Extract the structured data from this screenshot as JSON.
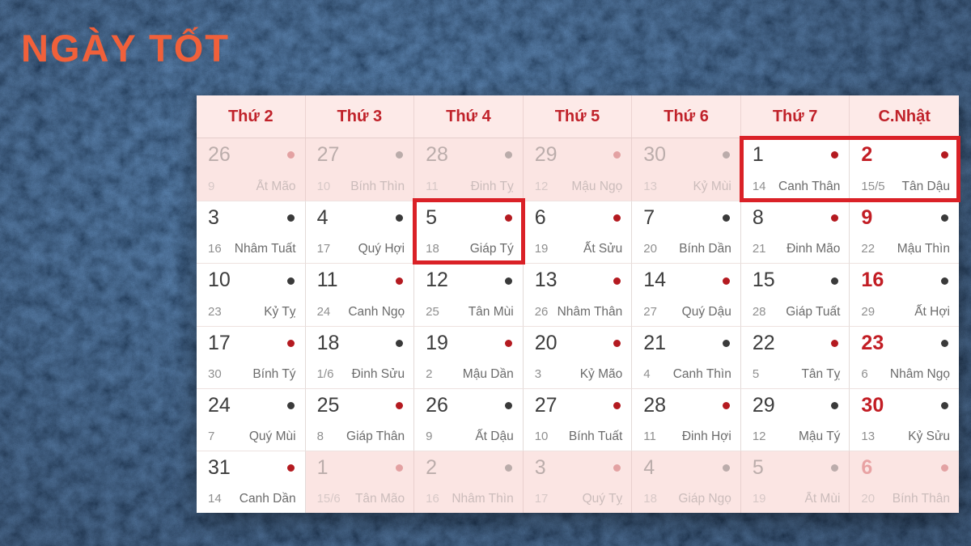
{
  "title": "NGÀY TỐT",
  "colors": {
    "background_navy": "#0d1d31",
    "title_orange": "#f1603a",
    "header_red": "#c0222a",
    "highlight_box_red": "#da2127",
    "good_day_dot_red": "#b41a20",
    "normal_day_dot_dark": "#3a3a3a",
    "adjacent_month_pink": "#fbe5e3",
    "sunday_number_red": "#c21d24"
  },
  "calendar": {
    "weekday_headers": [
      "Thứ 2",
      "Thứ 3",
      "Thứ 4",
      "Thứ 5",
      "Thứ 6",
      "Thứ 7",
      "C.Nhật"
    ],
    "weeks": [
      [
        {
          "day": "26",
          "lunar": "9",
          "chi": "Ất Mão",
          "dot": "red",
          "muted": true
        },
        {
          "day": "27",
          "lunar": "10",
          "chi": "Bính Thìn",
          "dot": "dark",
          "muted": true
        },
        {
          "day": "28",
          "lunar": "11",
          "chi": "Đinh Tỵ",
          "dot": "dark",
          "muted": true
        },
        {
          "day": "29",
          "lunar": "12",
          "chi": "Mậu Ngọ",
          "dot": "red",
          "muted": true
        },
        {
          "day": "30",
          "lunar": "13",
          "chi": "Kỷ Mùi",
          "dot": "dark",
          "muted": true
        },
        {
          "day": "1",
          "lunar": "14",
          "chi": "Canh Thân",
          "dot": "red"
        },
        {
          "day": "2",
          "lunar": "15/5",
          "chi": "Tân Dậu",
          "dot": "red",
          "red_num": true
        }
      ],
      [
        {
          "day": "3",
          "lunar": "16",
          "chi": "Nhâm Tuất",
          "dot": "dark"
        },
        {
          "day": "4",
          "lunar": "17",
          "chi": "Quý Hợi",
          "dot": "dark"
        },
        {
          "day": "5",
          "lunar": "18",
          "chi": "Giáp Tý",
          "dot": "red"
        },
        {
          "day": "6",
          "lunar": "19",
          "chi": "Ất Sửu",
          "dot": "red"
        },
        {
          "day": "7",
          "lunar": "20",
          "chi": "Bính Dần",
          "dot": "dark"
        },
        {
          "day": "8",
          "lunar": "21",
          "chi": "Đinh Mão",
          "dot": "red"
        },
        {
          "day": "9",
          "lunar": "22",
          "chi": "Mậu Thìn",
          "dot": "dark",
          "red_num": true
        }
      ],
      [
        {
          "day": "10",
          "lunar": "23",
          "chi": "Kỷ Tỵ",
          "dot": "dark"
        },
        {
          "day": "11",
          "lunar": "24",
          "chi": "Canh Ngọ",
          "dot": "red"
        },
        {
          "day": "12",
          "lunar": "25",
          "chi": "Tân Mùi",
          "dot": "dark"
        },
        {
          "day": "13",
          "lunar": "26",
          "chi": "Nhâm Thân",
          "dot": "red"
        },
        {
          "day": "14",
          "lunar": "27",
          "chi": "Quý Dậu",
          "dot": "red"
        },
        {
          "day": "15",
          "lunar": "28",
          "chi": "Giáp Tuất",
          "dot": "dark"
        },
        {
          "day": "16",
          "lunar": "29",
          "chi": "Ất Hợi",
          "dot": "dark",
          "red_num": true
        }
      ],
      [
        {
          "day": "17",
          "lunar": "30",
          "chi": "Bính Tý",
          "dot": "red"
        },
        {
          "day": "18",
          "lunar": "1/6",
          "chi": "Đinh Sửu",
          "dot": "dark"
        },
        {
          "day": "19",
          "lunar": "2",
          "chi": "Mậu Dần",
          "dot": "red"
        },
        {
          "day": "20",
          "lunar": "3",
          "chi": "Kỷ Mão",
          "dot": "red"
        },
        {
          "day": "21",
          "lunar": "4",
          "chi": "Canh Thìn",
          "dot": "dark"
        },
        {
          "day": "22",
          "lunar": "5",
          "chi": "Tân Tỵ",
          "dot": "red"
        },
        {
          "day": "23",
          "lunar": "6",
          "chi": "Nhâm Ngọ",
          "dot": "dark",
          "red_num": true
        }
      ],
      [
        {
          "day": "24",
          "lunar": "7",
          "chi": "Quý Mùi",
          "dot": "dark"
        },
        {
          "day": "25",
          "lunar": "8",
          "chi": "Giáp Thân",
          "dot": "red"
        },
        {
          "day": "26",
          "lunar": "9",
          "chi": "Ất Dậu",
          "dot": "dark"
        },
        {
          "day": "27",
          "lunar": "10",
          "chi": "Bính Tuất",
          "dot": "red"
        },
        {
          "day": "28",
          "lunar": "11",
          "chi": "Đinh Hợi",
          "dot": "red"
        },
        {
          "day": "29",
          "lunar": "12",
          "chi": "Mậu Tý",
          "dot": "dark"
        },
        {
          "day": "30",
          "lunar": "13",
          "chi": "Kỷ Sửu",
          "dot": "dark",
          "red_num": true
        }
      ],
      [
        {
          "day": "31",
          "lunar": "14",
          "chi": "Canh Dần",
          "dot": "red"
        },
        {
          "day": "1",
          "lunar": "15/6",
          "chi": "Tân Mão",
          "dot": "red",
          "muted": true
        },
        {
          "day": "2",
          "lunar": "16",
          "chi": "Nhâm Thìn",
          "dot": "dark",
          "muted": true
        },
        {
          "day": "3",
          "lunar": "17",
          "chi": "Quý Tỵ",
          "dot": "red",
          "muted": true
        },
        {
          "day": "4",
          "lunar": "18",
          "chi": "Giáp Ngọ",
          "dot": "dark",
          "muted": true
        },
        {
          "day": "5",
          "lunar": "19",
          "chi": "Ất Mùi",
          "dot": "dark",
          "muted": true
        },
        {
          "day": "6",
          "lunar": "20",
          "chi": "Bính Thân",
          "dot": "red",
          "muted": true,
          "red_num": true
        }
      ]
    ],
    "highlights": [
      {
        "week": 0,
        "col_from": 5,
        "col_to": 6
      },
      {
        "week": 1,
        "col_from": 2,
        "col_to": 2
      }
    ]
  }
}
